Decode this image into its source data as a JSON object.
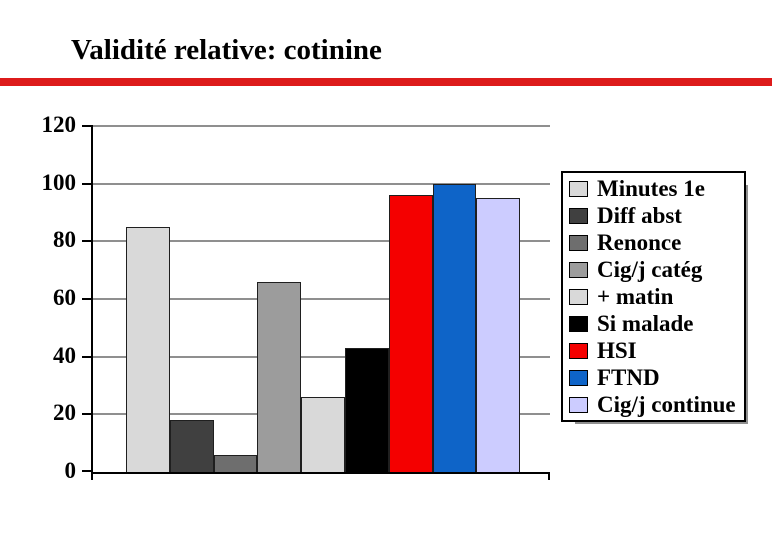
{
  "slide": {
    "title": "Validité relative: cotinine",
    "accent_color": "#dd1b1b"
  },
  "chart_data": {
    "type": "bar",
    "title": "",
    "xlabel": "",
    "ylabel": "",
    "categories": [
      "Minutes 1e",
      "Diff abst",
      "Renonce",
      "Cig/j catég",
      "+ matin",
      "Si malade",
      "HSI",
      "FTND",
      "Cig/j continue"
    ],
    "values": [
      85,
      18,
      6,
      66,
      26,
      43,
      96,
      100,
      95
    ],
    "colors": [
      "#d9d9d9",
      "#404040",
      "#6e6e6e",
      "#9c9c9c",
      "#d9d9d9",
      "#000000",
      "#f40000",
      "#0e64c8",
      "#ccccff"
    ],
    "ylim": [
      0,
      120
    ],
    "yticks": [
      0,
      20,
      40,
      60,
      80,
      100,
      120
    ],
    "grid": true,
    "grid_color": "#8f8f8f",
    "axis_color": "#000000",
    "bar_border_color": "#1f1f1f",
    "legend_position": "right",
    "legend_shadow_color": "#909090"
  }
}
